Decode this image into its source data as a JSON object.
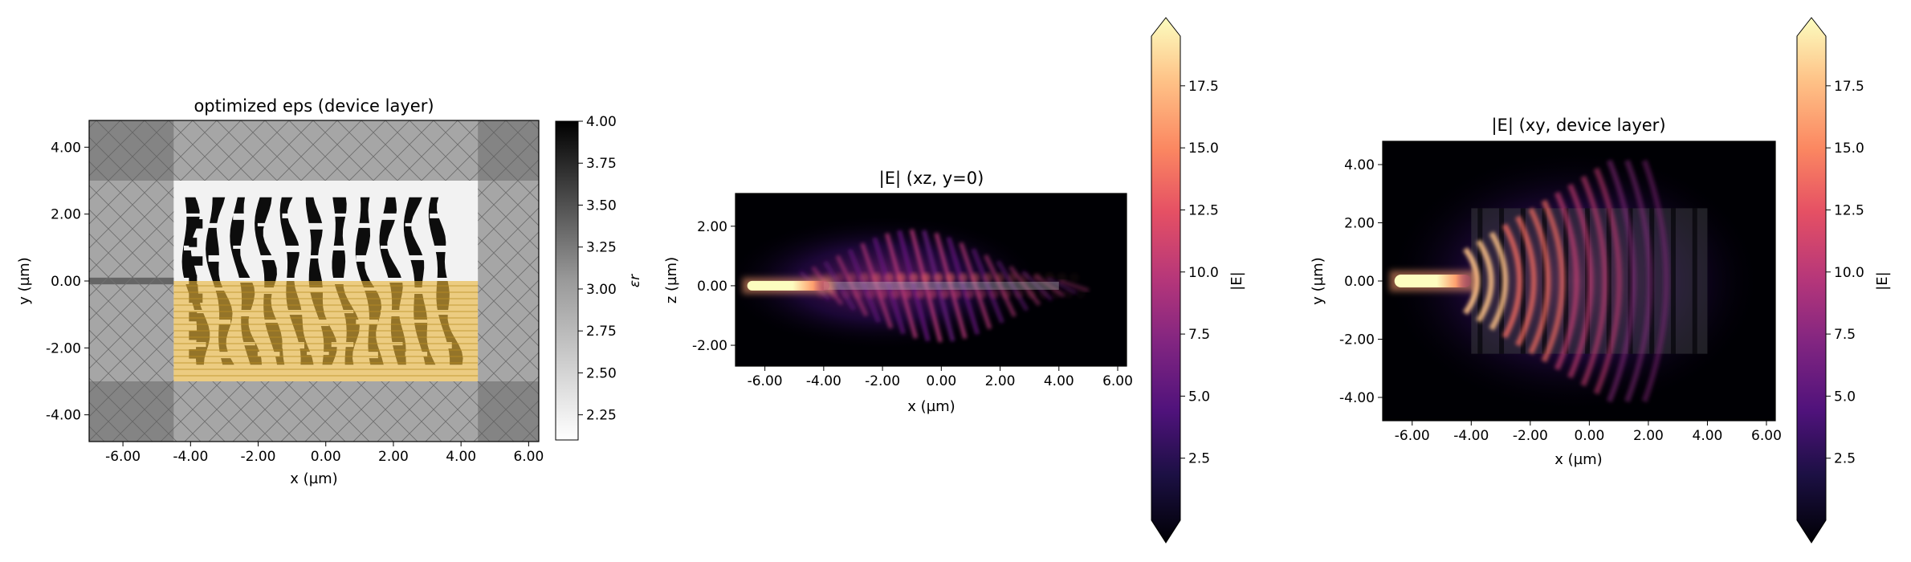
{
  "chart_data": [
    {
      "type": "heatmap",
      "title": "optimized eps (device layer)",
      "xlabel": "x (µm)",
      "ylabel": "y (µm)",
      "xlim": [
        -7.0,
        6.3
      ],
      "ylim": [
        -4.8,
        4.8
      ],
      "xticks": [
        "-6.00",
        "-4.00",
        "-2.00",
        "0.00",
        "2.00",
        "4.00",
        "6.00"
      ],
      "yticks": [
        "-4.00",
        "-2.00",
        "0.00",
        "2.00",
        "4.00"
      ],
      "colormap": "Greys",
      "colorbar": {
        "label": "εr",
        "range": [
          2.1,
          4.0
        ],
        "ticks": [
          "2.25",
          "2.50",
          "2.75",
          "3.00",
          "3.25",
          "3.50",
          "3.75",
          "4.00"
        ]
      },
      "background_eps": 2.25,
      "design_region": {
        "x": [
          -4.5,
          4.5
        ],
        "y": [
          -3.0,
          3.0
        ]
      },
      "pattern_region": {
        "x": [
          -4.0,
          4.0
        ],
        "y": [
          -2.5,
          2.5
        ]
      },
      "input_waveguide": {
        "x": [
          -7.0,
          -4.0
        ],
        "y": [
          -0.1,
          0.1
        ]
      },
      "pml_overlay": "hatched gray border",
      "monitor_overlay": {
        "x": [
          -4.5,
          4.5
        ],
        "y": [
          -3.0,
          0.0
        ],
        "color": "#e8b43c"
      },
      "stripe_count": 11
    },
    {
      "type": "heatmap",
      "title": "|E| (xz, y=0)",
      "xlabel": "x (µm)",
      "ylabel": "z (µm)",
      "xlim": [
        -7.0,
        6.3
      ],
      "ylim": [
        -2.7,
        3.1
      ],
      "xticks": [
        "-6.00",
        "-4.00",
        "-2.00",
        "0.00",
        "2.00",
        "4.00",
        "6.00"
      ],
      "yticks": [
        "-2.00",
        "0.00",
        "2.00"
      ],
      "colormap": "magma",
      "colorbar": {
        "label": "|E|",
        "range": [
          0,
          19.5
        ],
        "extend": "both",
        "ticks": [
          "2.5",
          "5.0",
          "7.5",
          "10.0",
          "12.5",
          "15.0",
          "17.5"
        ]
      },
      "source_beam": {
        "x": [
          -6.6,
          -3.8
        ],
        "z": 0.0,
        "peak": 19.5
      },
      "scattered_field_peak": 8.0
    },
    {
      "type": "heatmap",
      "title": "|E| (xy, device layer)",
      "xlabel": "x (µm)",
      "ylabel": "y (µm)",
      "xlim": [
        -7.0,
        6.3
      ],
      "ylim": [
        -4.8,
        4.8
      ],
      "xticks": [
        "-6.00",
        "-4.00",
        "-2.00",
        "0.00",
        "2.00",
        "4.00",
        "6.00"
      ],
      "yticks": [
        "-4.00",
        "-2.00",
        "0.00",
        "2.00",
        "4.00"
      ],
      "colormap": "magma",
      "colorbar": {
        "label": "|E|",
        "range": [
          0,
          19.5
        ],
        "extend": "both",
        "ticks": [
          "2.5",
          "5.0",
          "7.5",
          "10.0",
          "12.5",
          "15.0",
          "17.5"
        ]
      },
      "source_beam": {
        "x": [
          -6.6,
          -4.0
        ],
        "y": 0.0,
        "peak": 19.5
      },
      "wavefront_count": 14,
      "scattered_field_peak": 12.0
    }
  ]
}
